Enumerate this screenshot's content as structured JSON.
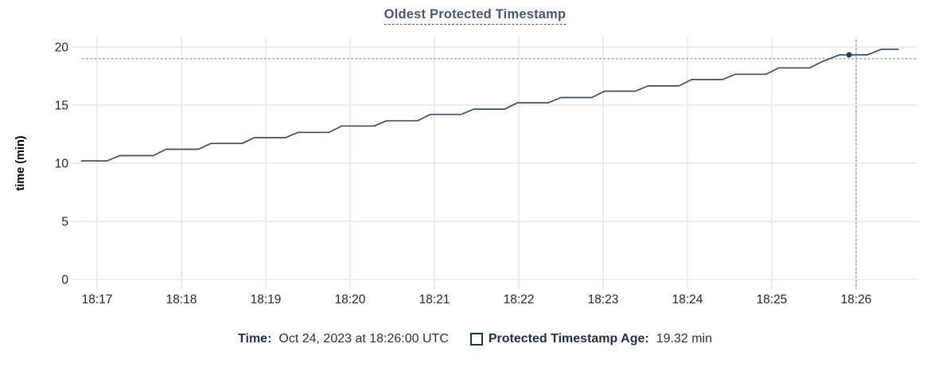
{
  "header": {
    "title": "Oldest Protected Timestamp"
  },
  "chart_data": {
    "type": "line",
    "title": "Oldest Protected Timestamp",
    "xlabel": "",
    "ylabel": "time (min)",
    "ylim": [
      0,
      20
    ],
    "y_ticks": [
      0,
      5,
      10,
      15,
      20
    ],
    "x_ticks": [
      "18:17",
      "18:18",
      "18:19",
      "18:20",
      "18:21",
      "18:22",
      "18:23",
      "18:24",
      "18:25",
      "18:26"
    ],
    "x_range": [
      "18:16:49",
      "18:26:44"
    ],
    "grid": true,
    "legend_position": "bottom",
    "series": [
      {
        "name": "Protected Timestamp Age",
        "unit": "min",
        "points": [
          [
            "18:16:49",
            10.2
          ],
          [
            "18:17:07",
            10.2
          ],
          [
            "18:17:16",
            10.65
          ],
          [
            "18:17:40",
            10.65
          ],
          [
            "18:17:49",
            11.2
          ],
          [
            "18:18:12",
            11.2
          ],
          [
            "18:18:21",
            11.7
          ],
          [
            "18:18:43",
            11.7
          ],
          [
            "18:18:52",
            12.2
          ],
          [
            "18:19:14",
            12.2
          ],
          [
            "18:19:23",
            12.65
          ],
          [
            "18:19:45",
            12.65
          ],
          [
            "18:19:54",
            13.2
          ],
          [
            "18:20:17",
            13.2
          ],
          [
            "18:20:26",
            13.65
          ],
          [
            "18:20:48",
            13.65
          ],
          [
            "18:20:57",
            14.2
          ],
          [
            "18:21:19",
            14.2
          ],
          [
            "18:21:28",
            14.65
          ],
          [
            "18:21:50",
            14.65
          ],
          [
            "18:21:59",
            15.2
          ],
          [
            "18:22:21",
            15.2
          ],
          [
            "18:22:30",
            15.65
          ],
          [
            "18:22:52",
            15.65
          ],
          [
            "18:23:01",
            16.2
          ],
          [
            "18:23:23",
            16.2
          ],
          [
            "18:23:32",
            16.65
          ],
          [
            "18:23:54",
            16.65
          ],
          [
            "18:24:03",
            17.2
          ],
          [
            "18:24:25",
            17.2
          ],
          [
            "18:24:34",
            17.65
          ],
          [
            "18:24:56",
            17.65
          ],
          [
            "18:25:05",
            18.2
          ],
          [
            "18:25:27",
            18.2
          ],
          [
            "18:25:36",
            18.75
          ],
          [
            "18:25:48",
            19.32
          ],
          [
            "18:26:08",
            19.32
          ],
          [
            "18:26:18",
            19.8
          ],
          [
            "18:26:30",
            19.8
          ]
        ]
      }
    ],
    "crosshair": {
      "time": "18:26:00",
      "value": 19.32,
      "hline_value": 19.0,
      "dot": {
        "time": "18:25:55",
        "value": 19.32
      }
    }
  },
  "legend": {
    "time_label": "Time:",
    "time_value": "Oct 24, 2023 at 18:26:00 UTC",
    "series_label": "Protected Timestamp Age:",
    "series_value": "19.32 min",
    "checkbox_checked": false
  },
  "colors": {
    "accent_text": "#475872",
    "legend_text": "#1f3147",
    "line": "#3e4e68",
    "dot": "#2c3d57",
    "crosshair": "#9fb4c2",
    "grid": "#ededed",
    "tick_text": "#262626",
    "axis_label_text": "#000000"
  }
}
